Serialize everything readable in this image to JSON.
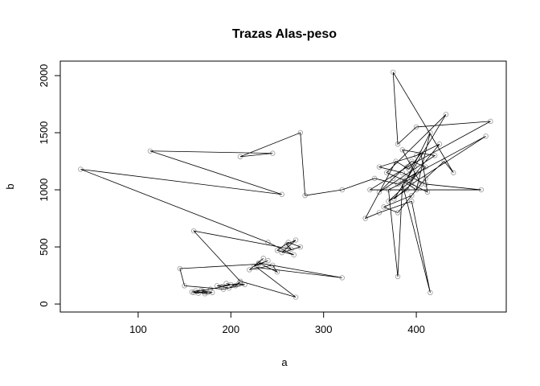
{
  "chart_data": {
    "type": "line",
    "title": "Trazas Alas-peso",
    "x_label": "a",
    "y_label": "b",
    "xlim": [
      16,
      497
    ],
    "ylim": [
      -70,
      2127
    ],
    "xticks": [
      100,
      200,
      300,
      400
    ],
    "yticks": [
      0,
      500,
      1000,
      1500,
      2000
    ],
    "line_color": "#000000",
    "marker_color": "#9a9a9a",
    "markers": true,
    "x": [
      160,
      165,
      170,
      175,
      158,
      168,
      180,
      172,
      162,
      178,
      190,
      200,
      195,
      205,
      210,
      198,
      185,
      208,
      215,
      192,
      150,
      145,
      230,
      240,
      225,
      235,
      220,
      245,
      250,
      230,
      320,
      228,
      270,
      210,
      160,
      265,
      260,
      270,
      255,
      275,
      262,
      250,
      268,
      240,
      38,
      255,
      113,
      245,
      210,
      275,
      280,
      320,
      355,
      380,
      400,
      390,
      370,
      410,
      395,
      375,
      360,
      420,
      385,
      405,
      395,
      365,
      380,
      410,
      430,
      440,
      375,
      380,
      400,
      480,
      390,
      350,
      470,
      410,
      385,
      360,
      400,
      425,
      395,
      370,
      380,
      385,
      415,
      395,
      360,
      345,
      378,
      392,
      405,
      412,
      388,
      368,
      432,
      398,
      376,
      395,
      475,
      390,
      415,
      400,
      385
    ],
    "values": [
      100,
      95,
      110,
      100,
      105,
      120,
      100,
      90,
      115,
      130,
      150,
      170,
      180,
      160,
      190,
      140,
      160,
      175,
      170,
      130,
      160,
      310,
      350,
      380,
      330,
      400,
      300,
      340,
      280,
      360,
      230,
      320,
      60,
      200,
      640,
      480,
      520,
      560,
      450,
      500,
      540,
      470,
      430,
      540,
      1180,
      960,
      1340,
      1320,
      1290,
      1500,
      950,
      1000,
      1100,
      1050,
      1150,
      1000,
      900,
      1200,
      1250,
      1100,
      980,
      1300,
      1350,
      1050,
      950,
      850,
      800,
      1100,
      1250,
      1150,
      2030,
      1400,
      1550,
      1600,
      1200,
      1000,
      1000,
      1050,
      1150,
      1200,
      1300,
      1400,
      1100,
      1000,
      240,
      1050,
      100,
      900,
      800,
      750,
      1250,
      1180,
      1320,
      980,
      1080,
      1150,
      1660,
      1200,
      920,
      1050,
      1470,
      1100,
      1500,
      1000,
      1080
    ]
  }
}
